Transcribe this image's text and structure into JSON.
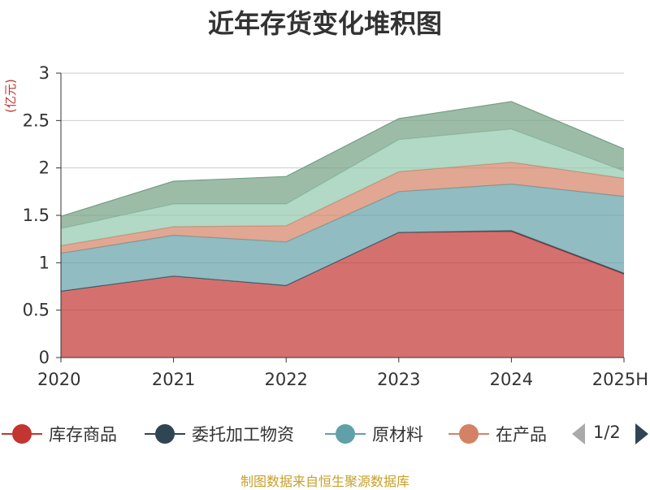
{
  "chart_data": {
    "type": "area",
    "stacked": true,
    "title": "近年存货变化堆积图",
    "ylabel": "(亿元)",
    "categories": [
      "2020",
      "2021",
      "2022",
      "2023",
      "2024",
      "2025H"
    ],
    "ylim": [
      0,
      3
    ],
    "yticks": [
      "0",
      "0.5",
      "1",
      "1.5",
      "2",
      "2.5",
      "3"
    ],
    "grid": true,
    "legend_position": "bottom",
    "series": [
      {
        "name": "库存商品",
        "color": "#c23531",
        "values": [
          0.7,
          0.86,
          0.76,
          1.32,
          1.33,
          0.88
        ]
      },
      {
        "name": "委托加工物资",
        "color": "#2f4554",
        "values": [
          0.0,
          0.0,
          0.0,
          0.0,
          0.01,
          0.01
        ]
      },
      {
        "name": "原材料",
        "color": "#61a0a8",
        "values": [
          0.4,
          0.43,
          0.46,
          0.43,
          0.49,
          0.81
        ]
      },
      {
        "name": "在产品",
        "color": "#d48265",
        "values": [
          0.08,
          0.09,
          0.17,
          0.21,
          0.23,
          0.19
        ]
      },
      {
        "color": "#91c7ae",
        "values": [
          0.18,
          0.24,
          0.23,
          0.34,
          0.35,
          0.08
        ]
      },
      {
        "color": "#749f83",
        "values": [
          0.13,
          0.24,
          0.29,
          0.22,
          0.29,
          0.23
        ]
      }
    ]
  },
  "legend": {
    "page_indicator": "1/2"
  },
  "footer": {
    "source": "制图数据来自恒生聚源数据库"
  }
}
